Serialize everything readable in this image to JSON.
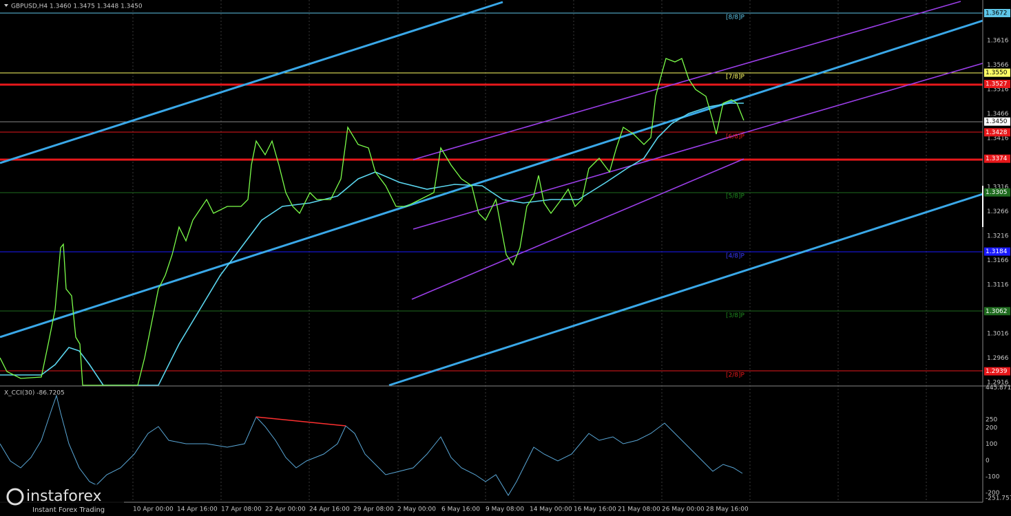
{
  "header": "GBPUSD,H4  1.3460 1.3475 1.3448 1.3450",
  "price_ticks": [
    "1.3616",
    "1.3566",
    "1.3516",
    "1.3466",
    "1.3416",
    "1.3316",
    "1.3266",
    "1.3216",
    "1.3166",
    "1.3116",
    "1.3016",
    "1.2966",
    "1.2916"
  ],
  "price_markers": [
    {
      "label": "1.3672",
      "color": "#5fc6e8"
    },
    {
      "label": "1.3550",
      "color": "#ffff66"
    },
    {
      "label": "1.3527",
      "color": "#e8181b"
    },
    {
      "label": "1.3450",
      "color": "#ffffff"
    },
    {
      "label": "1.3428",
      "color": "#e8181b"
    },
    {
      "label": "1.3374",
      "color": "#e8181b"
    },
    {
      "label": "1.3305",
      "color": "#1f6b1f"
    },
    {
      "label": "1.3184",
      "color": "#1a1aff"
    },
    {
      "label": "1.3062",
      "color": "#1f6b1f"
    },
    {
      "label": "1.2939",
      "color": "#e8181b"
    }
  ],
  "murray_labels": [
    {
      "label": "[8/8]P",
      "color": "#5fc6e8"
    },
    {
      "label": "[7/8]P",
      "color": "#ffff66"
    },
    {
      "label": "[6/8]P",
      "color": "#e8181b"
    },
    {
      "label": "[5/8]P",
      "color": "#1f8b1f"
    },
    {
      "label": "[4/8]P",
      "color": "#3a3aff"
    },
    {
      "label": "[3/8]P",
      "color": "#1f8b1f"
    },
    {
      "label": "[2/8]P",
      "color": "#e8181b"
    }
  ],
  "cci": {
    "title": "X_CCI(30) -86.7205",
    "ticks": [
      "445.8715",
      "250",
      "200",
      "100",
      "0",
      "-100",
      "-200",
      "-251.757"
    ]
  },
  "time_axis": [
    "10 Apr 00:00",
    "14 Apr 16:00",
    "17 Apr 08:00",
    "22 Apr 00:00",
    "24 Apr 16:00",
    "29 Apr 08:00",
    "2 May 00:00",
    "6 May 16:00",
    "9 May 08:00",
    "14 May 00:00",
    "16 May 16:00",
    "21 May 08:00",
    "26 May 00:00",
    "28 May 16:00"
  ],
  "logo": {
    "name": "instaforex",
    "tagline": "Instant Forex Trading"
  }
}
